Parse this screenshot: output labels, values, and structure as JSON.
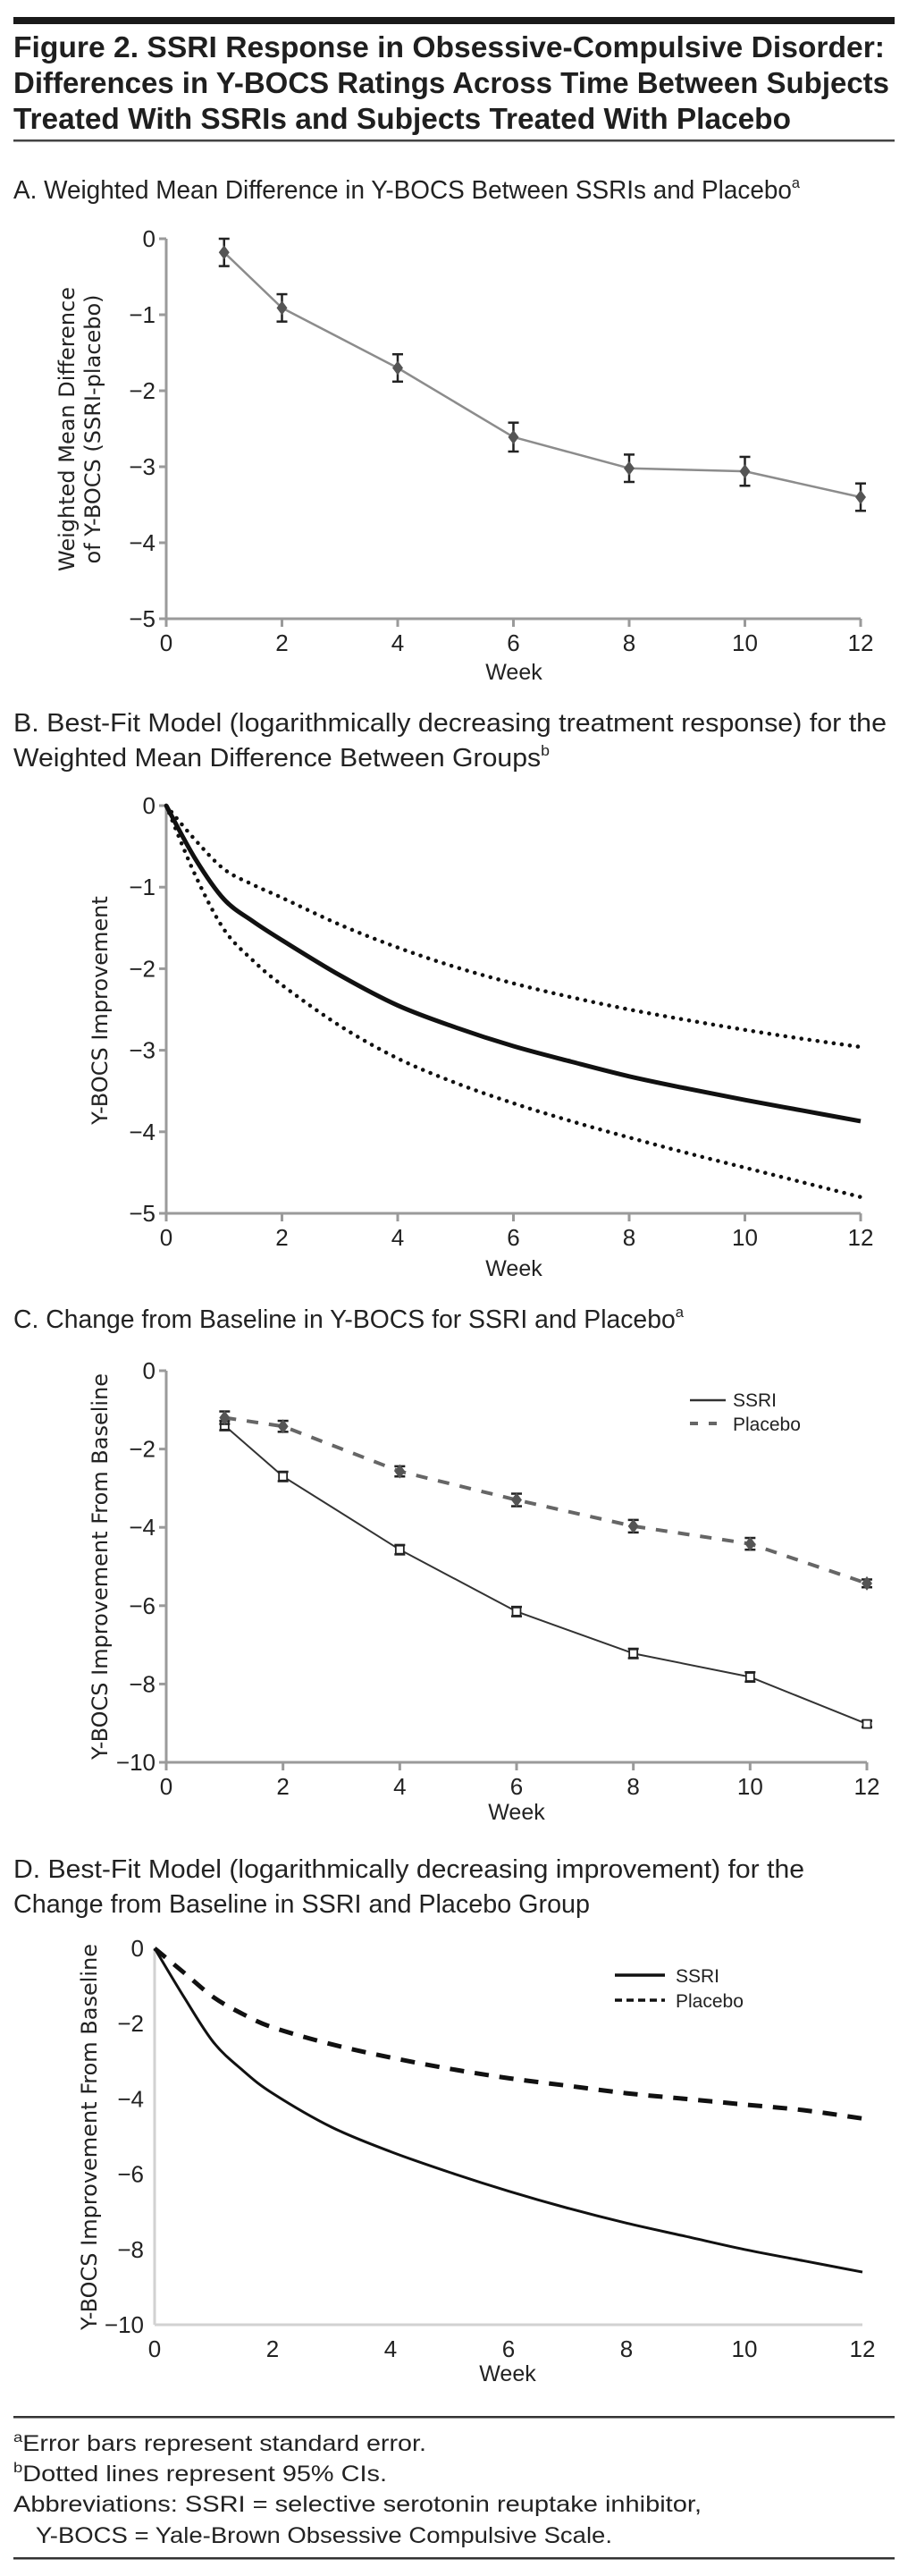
{
  "figure": {
    "title_lines": [
      "Figure 2. SSRI Response in Obsessive-Compulsive Disorder:",
      "Differences in Y-BOCS Ratings Across Time Between Subjects",
      "Treated With SSRIs and Subjects Treated With Placebo"
    ],
    "footnotes": [
      {
        "sup": "a",
        "text": "Error bars represent standard error."
      },
      {
        "sup": "b",
        "text": "Dotted lines represent 95% CIs."
      },
      {
        "sup": "",
        "text": "Abbreviations: SSRI = selective serotonin reuptake inhibitor,"
      },
      {
        "sup": "",
        "text": "  Y-BOCS = Yale-Brown Obsessive Compulsive Scale."
      }
    ]
  },
  "colors": {
    "text": "#222222",
    "axis": "#9a9a9a",
    "series_gray": "#8c8c8c",
    "marker_dark": "#555555",
    "black": "#111111",
    "placebo_gray": "#666666"
  },
  "chart_data": [
    {
      "id": "A",
      "type": "line",
      "heading": "A. Weighted Mean Difference in Y-BOCS Between SSRIs and Placebo",
      "heading_sup": "a",
      "title": "Weighted Mean Difference in Y-BOCS Between SSRIs and Placebo",
      "xlabel": "Week",
      "ylabel": [
        "Weighted Mean Difference",
        "of Y-BOCS (SSRI-placebo)"
      ],
      "xlim": [
        0,
        12
      ],
      "ylim": [
        -5,
        0
      ],
      "xticks": [
        0,
        2,
        4,
        6,
        8,
        10,
        12
      ],
      "yticks": [
        0,
        -1,
        -2,
        -3,
        -4,
        -5
      ],
      "ytick_labels": [
        "0",
        "−1",
        "−2",
        "−3",
        "−4",
        "−5"
      ],
      "grid": false,
      "legend": null,
      "series": [
        {
          "name": "SSRI − placebo",
          "style": "solid-gray-diamond",
          "x": [
            1,
            2,
            4,
            6,
            8,
            10,
            12
          ],
          "y": [
            -0.18,
            -0.91,
            -1.7,
            -2.61,
            -3.02,
            -3.06,
            -3.4
          ],
          "se": [
            0.18,
            0.18,
            0.18,
            0.19,
            0.18,
            0.19,
            0.18
          ]
        }
      ]
    },
    {
      "id": "B",
      "type": "line",
      "heading": [
        "B. Best-Fit Model (logarithmically decreasing treatment response) for the",
        "Weighted Mean Difference Between Groups"
      ],
      "heading_sup": "b",
      "xlabel": "Week",
      "ylabel": "Y-BOCS Improvement",
      "xlim": [
        0,
        12
      ],
      "ylim": [
        -5,
        0
      ],
      "xticks": [
        0,
        2,
        4,
        6,
        8,
        10,
        12
      ],
      "yticks": [
        0,
        -1,
        -2,
        -3,
        -4,
        -5
      ],
      "ytick_labels": [
        "0",
        "−1",
        "−2",
        "−3",
        "−4",
        "−5"
      ],
      "grid": false,
      "legend": null,
      "series": [
        {
          "name": "Best fit",
          "style": "solid-black-thick",
          "x": [
            0,
            0.5,
            1,
            1.5,
            2,
            3,
            4,
            5,
            6,
            7,
            8,
            9,
            10,
            11,
            12
          ],
          "y": [
            0,
            -0.65,
            -1.15,
            -1.42,
            -1.65,
            -2.08,
            -2.45,
            -2.72,
            -2.95,
            -3.14,
            -3.32,
            -3.47,
            -3.61,
            -3.74,
            -3.87
          ]
        },
        {
          "name": "Upper 95% CI",
          "style": "dotted-black",
          "x": [
            0,
            0.5,
            1,
            1.5,
            2,
            3,
            4,
            5,
            6,
            7,
            8,
            9,
            10,
            11,
            12
          ],
          "y": [
            0,
            -0.42,
            -0.78,
            -0.97,
            -1.13,
            -1.46,
            -1.74,
            -1.98,
            -2.18,
            -2.35,
            -2.5,
            -2.63,
            -2.75,
            -2.86,
            -2.96
          ]
        },
        {
          "name": "Lower 95% CI",
          "style": "dotted-black",
          "x": [
            0,
            0.5,
            1,
            1.5,
            2,
            3,
            4,
            5,
            6,
            7,
            8,
            9,
            10,
            11,
            12
          ],
          "y": [
            0,
            -0.85,
            -1.52,
            -1.9,
            -2.2,
            -2.7,
            -3.1,
            -3.4,
            -3.65,
            -3.87,
            -4.07,
            -4.26,
            -4.44,
            -4.62,
            -4.8
          ]
        }
      ]
    },
    {
      "id": "C",
      "type": "line",
      "heading": "C. Change from Baseline in Y-BOCS for SSRI and Placebo",
      "heading_sup": "a",
      "xlabel": "Week",
      "ylabel": "Y-BOCS Improvement From Baseline",
      "xlim": [
        0,
        12
      ],
      "ylim": [
        -10,
        0
      ],
      "xticks": [
        0,
        2,
        4,
        6,
        8,
        10,
        12
      ],
      "yticks": [
        0,
        -2,
        -4,
        -6,
        -8,
        -10
      ],
      "ytick_labels": [
        "0",
        "−2",
        "−4",
        "−6",
        "−8",
        "−10"
      ],
      "grid": false,
      "legend": "top-right",
      "series": [
        {
          "name": "SSRI",
          "style": "solid-thin-square",
          "x": [
            1,
            2,
            4,
            6,
            8,
            10,
            12
          ],
          "y": [
            -1.4,
            -2.7,
            -4.57,
            -6.15,
            -7.22,
            -7.82,
            -9.02
          ],
          "se": [
            0.12,
            0.12,
            0.12,
            0.12,
            0.12,
            0.12,
            0.08
          ]
        },
        {
          "name": "Placebo",
          "style": "dashed-gray-diamond",
          "x": [
            1,
            2,
            4,
            6,
            8,
            10,
            12
          ],
          "y": [
            -1.2,
            -1.42,
            -2.57,
            -3.3,
            -3.97,
            -4.42,
            -5.43
          ],
          "se": [
            0.16,
            0.14,
            0.13,
            0.16,
            0.16,
            0.15,
            0.1
          ]
        }
      ]
    },
    {
      "id": "D",
      "type": "line",
      "heading": [
        "D. Best-Fit Model (logarithmically decreasing improvement) for the",
        "Change from Baseline in SSRI and Placebo Group"
      ],
      "heading_sup": "",
      "xlabel": "Week",
      "ylabel": "Y-BOCS Improvement From Baseline",
      "xlim": [
        0,
        12
      ],
      "ylim": [
        -10,
        0
      ],
      "xticks": [
        0,
        2,
        4,
        6,
        8,
        10,
        12
      ],
      "yticks": [
        0,
        -2,
        -4,
        -6,
        -8,
        -10
      ],
      "ytick_labels": [
        "0",
        "−2",
        "−4",
        "−6",
        "−8",
        "−10"
      ],
      "grid": false,
      "legend": "top-right",
      "series": [
        {
          "name": "SSRI",
          "style": "solid-black",
          "x": [
            0,
            0.5,
            1,
            1.5,
            2,
            3,
            4,
            5,
            6,
            7,
            8,
            9,
            10,
            11,
            12
          ],
          "y": [
            0,
            -1.3,
            -2.5,
            -3.25,
            -3.85,
            -4.75,
            -5.4,
            -5.95,
            -6.45,
            -6.9,
            -7.3,
            -7.65,
            -8.0,
            -8.3,
            -8.6
          ]
        },
        {
          "name": "Placebo",
          "style": "dashed-black",
          "x": [
            0,
            0.5,
            1,
            1.5,
            2,
            3,
            4,
            5,
            6,
            7,
            8,
            9,
            10,
            11,
            12
          ],
          "y": [
            0,
            -0.65,
            -1.3,
            -1.75,
            -2.1,
            -2.55,
            -2.9,
            -3.2,
            -3.45,
            -3.65,
            -3.85,
            -4.0,
            -4.15,
            -4.3,
            -4.52
          ]
        }
      ]
    }
  ]
}
